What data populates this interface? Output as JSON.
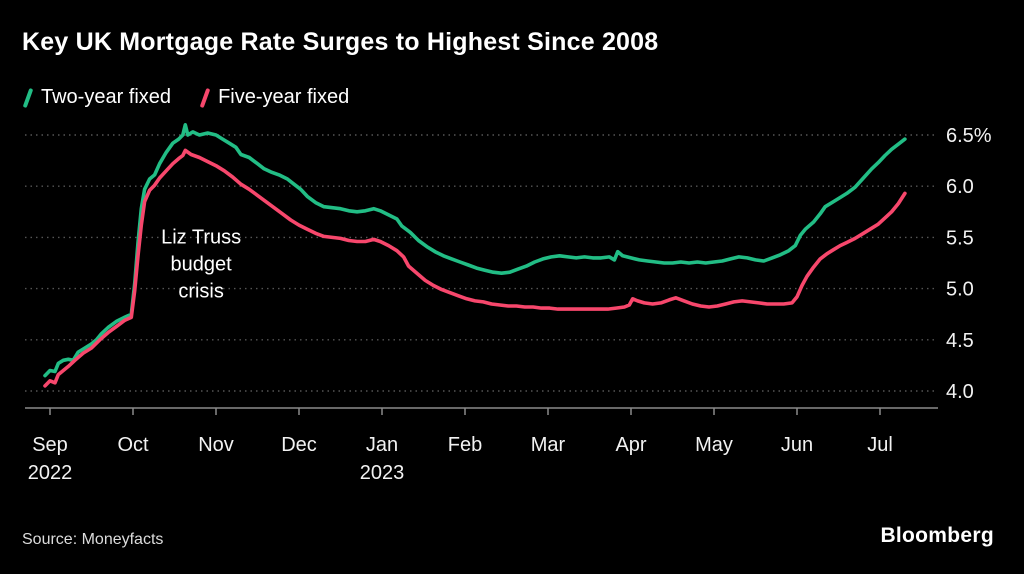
{
  "title": "Key UK Mortgage Rate Surges to Highest Since 2008",
  "legend": [
    {
      "label": "Two-year fixed"
    },
    {
      "label": "Five-year fixed"
    }
  ],
  "source": "Source: Moneyfacts",
  "brand": "Bloomberg",
  "colors": {
    "background": "#000000",
    "text": "#ffffff",
    "gridline": "#555555",
    "axis": "#8a8a8a",
    "two_year": "#22bd85",
    "five_year": "#f7476c"
  },
  "chart_data": {
    "type": "line",
    "title": "Key UK Mortgage Rate Surges to Highest Since 2008",
    "x_unit": "months from Sep 2022",
    "x_ticks": [
      {
        "label": "Sep",
        "year": "2022"
      },
      {
        "label": "Oct"
      },
      {
        "label": "Nov"
      },
      {
        "label": "Dec"
      },
      {
        "label": "Jan",
        "year": "2023"
      },
      {
        "label": "Feb"
      },
      {
        "label": "Mar"
      },
      {
        "label": "Apr"
      },
      {
        "label": "May"
      },
      {
        "label": "Jun"
      },
      {
        "label": "Jul"
      }
    ],
    "ylim": [
      3.9,
      6.7
    ],
    "yticks": [
      4.0,
      4.5,
      5.0,
      5.5,
      6.0,
      6.5
    ],
    "ytick_labels": [
      "4.0",
      "4.5",
      "5.0",
      "5.5",
      "6.0",
      "6.5%"
    ],
    "grid": "dotted-horizontal",
    "legend_position": "top-left",
    "annotation": {
      "lines": [
        "Liz Truss",
        "budget",
        "crisis"
      ],
      "x": 1.82,
      "y": 5.44
    },
    "series": [
      {
        "name": "Two-year fixed",
        "color": "#22bd85",
        "points": [
          [
            -0.06,
            4.15
          ],
          [
            0,
            4.2
          ],
          [
            0.06,
            4.19
          ],
          [
            0.1,
            4.27
          ],
          [
            0.16,
            4.3
          ],
          [
            0.22,
            4.31
          ],
          [
            0.28,
            4.3
          ],
          [
            0.34,
            4.38
          ],
          [
            0.42,
            4.42
          ],
          [
            0.5,
            4.46
          ],
          [
            0.56,
            4.5
          ],
          [
            0.62,
            4.56
          ],
          [
            0.7,
            4.62
          ],
          [
            0.8,
            4.68
          ],
          [
            0.9,
            4.72
          ],
          [
            0.98,
            4.75
          ],
          [
            1.02,
            5.05
          ],
          [
            1.06,
            5.45
          ],
          [
            1.1,
            5.78
          ],
          [
            1.14,
            5.97
          ],
          [
            1.2,
            6.07
          ],
          [
            1.26,
            6.11
          ],
          [
            1.32,
            6.22
          ],
          [
            1.4,
            6.33
          ],
          [
            1.48,
            6.42
          ],
          [
            1.55,
            6.46
          ],
          [
            1.6,
            6.5
          ],
          [
            1.63,
            6.6
          ],
          [
            1.66,
            6.5
          ],
          [
            1.72,
            6.53
          ],
          [
            1.8,
            6.5
          ],
          [
            1.9,
            6.52
          ],
          [
            2,
            6.5
          ],
          [
            2.08,
            6.46
          ],
          [
            2.16,
            6.42
          ],
          [
            2.24,
            6.38
          ],
          [
            2.3,
            6.31
          ],
          [
            2.4,
            6.28
          ],
          [
            2.5,
            6.22
          ],
          [
            2.58,
            6.17
          ],
          [
            2.66,
            6.14
          ],
          [
            2.76,
            6.11
          ],
          [
            2.86,
            6.07
          ],
          [
            2.94,
            6.02
          ],
          [
            3.02,
            5.97
          ],
          [
            3.1,
            5.9
          ],
          [
            3.2,
            5.84
          ],
          [
            3.3,
            5.8
          ],
          [
            3.4,
            5.79
          ],
          [
            3.5,
            5.78
          ],
          [
            3.6,
            5.76
          ],
          [
            3.7,
            5.75
          ],
          [
            3.8,
            5.76
          ],
          [
            3.9,
            5.78
          ],
          [
            3.98,
            5.76
          ],
          [
            4.08,
            5.72
          ],
          [
            4.18,
            5.68
          ],
          [
            4.24,
            5.61
          ],
          [
            4.34,
            5.55
          ],
          [
            4.44,
            5.47
          ],
          [
            4.54,
            5.41
          ],
          [
            4.64,
            5.36
          ],
          [
            4.74,
            5.32
          ],
          [
            4.84,
            5.29
          ],
          [
            4.94,
            5.26
          ],
          [
            5.04,
            5.23
          ],
          [
            5.14,
            5.2
          ],
          [
            5.24,
            5.18
          ],
          [
            5.34,
            5.16
          ],
          [
            5.44,
            5.15
          ],
          [
            5.54,
            5.16
          ],
          [
            5.64,
            5.19
          ],
          [
            5.74,
            5.22
          ],
          [
            5.84,
            5.26
          ],
          [
            5.94,
            5.29
          ],
          [
            6.04,
            5.31
          ],
          [
            6.14,
            5.32
          ],
          [
            6.24,
            5.31
          ],
          [
            6.34,
            5.3
          ],
          [
            6.44,
            5.31
          ],
          [
            6.54,
            5.3
          ],
          [
            6.64,
            5.3
          ],
          [
            6.74,
            5.31
          ],
          [
            6.8,
            5.28
          ],
          [
            6.84,
            5.36
          ],
          [
            6.9,
            5.32
          ],
          [
            7,
            5.3
          ],
          [
            7.1,
            5.28
          ],
          [
            7.2,
            5.27
          ],
          [
            7.3,
            5.26
          ],
          [
            7.4,
            5.25
          ],
          [
            7.5,
            5.25
          ],
          [
            7.6,
            5.26
          ],
          [
            7.7,
            5.25
          ],
          [
            7.8,
            5.26
          ],
          [
            7.9,
            5.25
          ],
          [
            8,
            5.26
          ],
          [
            8.1,
            5.27
          ],
          [
            8.2,
            5.29
          ],
          [
            8.3,
            5.31
          ],
          [
            8.4,
            5.3
          ],
          [
            8.5,
            5.28
          ],
          [
            8.6,
            5.27
          ],
          [
            8.7,
            5.3
          ],
          [
            8.8,
            5.33
          ],
          [
            8.9,
            5.37
          ],
          [
            8.98,
            5.42
          ],
          [
            9.04,
            5.52
          ],
          [
            9.1,
            5.58
          ],
          [
            9.2,
            5.65
          ],
          [
            9.28,
            5.73
          ],
          [
            9.34,
            5.8
          ],
          [
            9.44,
            5.85
          ],
          [
            9.52,
            5.89
          ],
          [
            9.6,
            5.93
          ],
          [
            9.7,
            5.99
          ],
          [
            9.8,
            6.08
          ],
          [
            9.9,
            6.17
          ],
          [
            9.98,
            6.23
          ],
          [
            10.06,
            6.3
          ],
          [
            10.14,
            6.36
          ],
          [
            10.22,
            6.41
          ],
          [
            10.3,
            6.46
          ]
        ]
      },
      {
        "name": "Five-year fixed",
        "color": "#f7476c",
        "points": [
          [
            -0.06,
            4.05
          ],
          [
            0,
            4.1
          ],
          [
            0.06,
            4.08
          ],
          [
            0.1,
            4.16
          ],
          [
            0.16,
            4.2
          ],
          [
            0.22,
            4.24
          ],
          [
            0.3,
            4.3
          ],
          [
            0.4,
            4.37
          ],
          [
            0.5,
            4.42
          ],
          [
            0.6,
            4.5
          ],
          [
            0.7,
            4.57
          ],
          [
            0.8,
            4.63
          ],
          [
            0.9,
            4.69
          ],
          [
            0.98,
            4.72
          ],
          [
            1.02,
            4.98
          ],
          [
            1.06,
            5.32
          ],
          [
            1.1,
            5.62
          ],
          [
            1.14,
            5.85
          ],
          [
            1.2,
            5.96
          ],
          [
            1.26,
            6.01
          ],
          [
            1.32,
            6.08
          ],
          [
            1.4,
            6.15
          ],
          [
            1.48,
            6.22
          ],
          [
            1.55,
            6.27
          ],
          [
            1.6,
            6.3
          ],
          [
            1.63,
            6.35
          ],
          [
            1.7,
            6.31
          ],
          [
            1.8,
            6.28
          ],
          [
            1.9,
            6.24
          ],
          [
            2,
            6.2
          ],
          [
            2.1,
            6.15
          ],
          [
            2.2,
            6.09
          ],
          [
            2.3,
            6.02
          ],
          [
            2.4,
            5.97
          ],
          [
            2.5,
            5.91
          ],
          [
            2.6,
            5.85
          ],
          [
            2.7,
            5.79
          ],
          [
            2.8,
            5.73
          ],
          [
            2.9,
            5.67
          ],
          [
            3,
            5.62
          ],
          [
            3.1,
            5.58
          ],
          [
            3.2,
            5.54
          ],
          [
            3.3,
            5.51
          ],
          [
            3.4,
            5.5
          ],
          [
            3.5,
            5.49
          ],
          [
            3.6,
            5.47
          ],
          [
            3.7,
            5.46
          ],
          [
            3.8,
            5.46
          ],
          [
            3.9,
            5.48
          ],
          [
            3.98,
            5.46
          ],
          [
            4.08,
            5.42
          ],
          [
            4.18,
            5.37
          ],
          [
            4.26,
            5.31
          ],
          [
            4.32,
            5.22
          ],
          [
            4.42,
            5.15
          ],
          [
            4.52,
            5.08
          ],
          [
            4.62,
            5.03
          ],
          [
            4.72,
            4.99
          ],
          [
            4.82,
            4.96
          ],
          [
            4.92,
            4.93
          ],
          [
            5.02,
            4.9
          ],
          [
            5.12,
            4.88
          ],
          [
            5.22,
            4.87
          ],
          [
            5.32,
            4.85
          ],
          [
            5.42,
            4.84
          ],
          [
            5.52,
            4.83
          ],
          [
            5.62,
            4.83
          ],
          [
            5.72,
            4.82
          ],
          [
            5.82,
            4.82
          ],
          [
            5.92,
            4.81
          ],
          [
            6.02,
            4.81
          ],
          [
            6.12,
            4.8
          ],
          [
            6.22,
            4.8
          ],
          [
            6.32,
            4.8
          ],
          [
            6.42,
            4.8
          ],
          [
            6.52,
            4.8
          ],
          [
            6.62,
            4.8
          ],
          [
            6.72,
            4.8
          ],
          [
            6.82,
            4.81
          ],
          [
            6.92,
            4.82
          ],
          [
            6.98,
            4.84
          ],
          [
            7.02,
            4.9
          ],
          [
            7.08,
            4.88
          ],
          [
            7.16,
            4.86
          ],
          [
            7.26,
            4.85
          ],
          [
            7.36,
            4.86
          ],
          [
            7.46,
            4.89
          ],
          [
            7.54,
            4.91
          ],
          [
            7.64,
            4.88
          ],
          [
            7.74,
            4.85
          ],
          [
            7.84,
            4.83
          ],
          [
            7.94,
            4.82
          ],
          [
            8.04,
            4.83
          ],
          [
            8.14,
            4.85
          ],
          [
            8.24,
            4.87
          ],
          [
            8.34,
            4.88
          ],
          [
            8.44,
            4.87
          ],
          [
            8.54,
            4.86
          ],
          [
            8.64,
            4.85
          ],
          [
            8.74,
            4.85
          ],
          [
            8.84,
            4.85
          ],
          [
            8.94,
            4.86
          ],
          [
            9,
            4.92
          ],
          [
            9.06,
            5.03
          ],
          [
            9.12,
            5.12
          ],
          [
            9.2,
            5.21
          ],
          [
            9.28,
            5.29
          ],
          [
            9.36,
            5.34
          ],
          [
            9.44,
            5.38
          ],
          [
            9.52,
            5.42
          ],
          [
            9.6,
            5.45
          ],
          [
            9.7,
            5.49
          ],
          [
            9.8,
            5.54
          ],
          [
            9.9,
            5.59
          ],
          [
            9.98,
            5.63
          ],
          [
            10.06,
            5.69
          ],
          [
            10.14,
            5.75
          ],
          [
            10.22,
            5.83
          ],
          [
            10.3,
            5.93
          ]
        ]
      }
    ]
  }
}
